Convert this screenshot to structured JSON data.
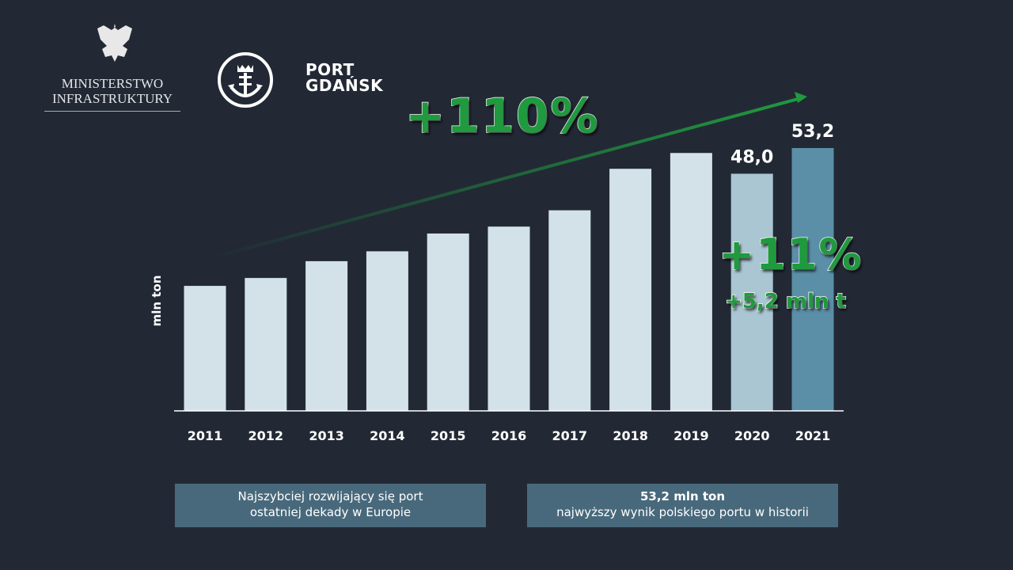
{
  "logos": {
    "ministry": [
      "MINISTERSTWO",
      "INFRASTRUKTURY"
    ],
    "port": [
      "PORT",
      "GDAŃSK"
    ]
  },
  "highlights": {
    "decade_growth": "+110%",
    "yoy_growth": "+11%",
    "yoy_abs": "+5,2 mln t"
  },
  "boxes": {
    "left": [
      "Najszybciej rozwijający się port",
      "ostatniej dekady w Europie"
    ],
    "right_title": "53,2 mln ton",
    "right_sub": "najwyższy wynik polskiego portu w historii"
  },
  "chart_data": {
    "type": "bar",
    "ylabel": "mln ton",
    "categories": [
      "2011",
      "2012",
      "2013",
      "2014",
      "2015",
      "2016",
      "2017",
      "2018",
      "2019",
      "2020",
      "2021"
    ],
    "values": [
      25.3,
      26.9,
      30.3,
      32.3,
      35.9,
      37.3,
      40.6,
      49.0,
      52.2,
      48.0,
      53.2
    ],
    "data_labels": {
      "2020": "48,0",
      "2021": "53,2"
    },
    "ylim": [
      0,
      53.2
    ],
    "grid": false,
    "colors": {
      "default": "#d3e2e9",
      "2020": "#a9c6d2",
      "2021": "#5b8fa8",
      "accent": "#1f9a3e"
    }
  }
}
